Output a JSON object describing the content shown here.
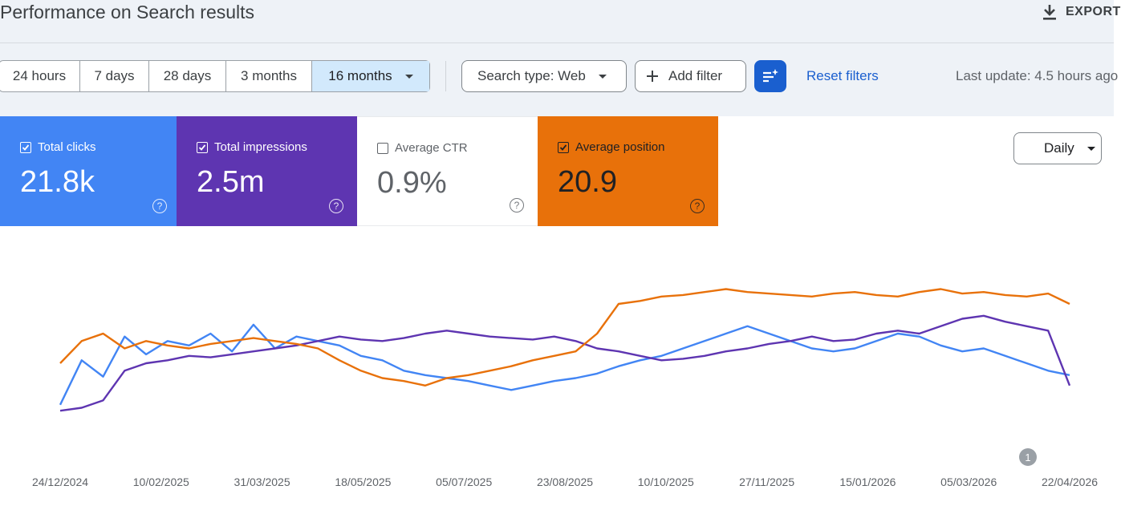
{
  "page": {
    "title": "Performance on Search results",
    "export_label": "EXPORT"
  },
  "date_range": {
    "options": [
      "24 hours",
      "7 days",
      "28 days",
      "3 months",
      "16 months"
    ],
    "selected": "16 months"
  },
  "filters": {
    "search_type": "Search type: Web",
    "add_filter": "Add filter",
    "reset": "Reset filters",
    "last_update": "Last update: 4.5 hours ago"
  },
  "metrics": [
    {
      "label": "Total clicks",
      "value": "21.8k",
      "checked": true,
      "color": "#4285f4"
    },
    {
      "label": "Total impressions",
      "value": "2.5m",
      "checked": true,
      "color": "#5e35b1"
    },
    {
      "label": "Average CTR",
      "value": "0.9%",
      "checked": false,
      "color": "#ffffff"
    },
    {
      "label": "Average position",
      "value": "20.9",
      "checked": true,
      "color": "#e8710a"
    }
  ],
  "granularity": "Daily",
  "annotation_label": "1",
  "icons": {
    "export": "download-icon",
    "add": "plus-icon",
    "filter": "filter-sparkle-icon",
    "help": "help-circle-icon",
    "check": "checkbox-icon"
  },
  "chart_data": {
    "type": "line",
    "x_tick_labels": [
      "24/12/2024",
      "10/02/2025",
      "31/03/2025",
      "18/05/2025",
      "05/07/2025",
      "23/08/2025",
      "10/10/2025",
      "27/11/2025",
      "15/01/2026",
      "05/03/2026",
      "22/04/2026"
    ],
    "x_range": [
      "24/12/2024",
      "29/04/2026"
    ],
    "y_axis_visible": false,
    "grid": false,
    "annotation": {
      "label": "1",
      "near_x": "20/04/2026"
    },
    "series": [
      {
        "name": "Total clicks",
        "color": "#4285f4",
        "values": [
          0.12,
          0.42,
          0.31,
          0.58,
          0.46,
          0.55,
          0.52,
          0.6,
          0.48,
          0.66,
          0.5,
          0.58,
          0.55,
          0.52,
          0.45,
          0.42,
          0.35,
          0.32,
          0.3,
          0.28,
          0.25,
          0.22,
          0.25,
          0.28,
          0.3,
          0.33,
          0.38,
          0.42,
          0.45,
          0.5,
          0.55,
          0.6,
          0.65,
          0.6,
          0.55,
          0.5,
          0.48,
          0.5,
          0.55,
          0.6,
          0.58,
          0.52,
          0.48,
          0.5,
          0.45,
          0.4,
          0.35,
          0.32
        ]
      },
      {
        "name": "Total impressions",
        "color": "#5e35b1",
        "values": [
          0.08,
          0.1,
          0.15,
          0.35,
          0.4,
          0.42,
          0.45,
          0.44,
          0.46,
          0.48,
          0.5,
          0.52,
          0.55,
          0.58,
          0.56,
          0.55,
          0.57,
          0.6,
          0.62,
          0.6,
          0.58,
          0.57,
          0.56,
          0.58,
          0.55,
          0.5,
          0.48,
          0.45,
          0.42,
          0.43,
          0.45,
          0.48,
          0.5,
          0.53,
          0.55,
          0.58,
          0.55,
          0.56,
          0.6,
          0.62,
          0.6,
          0.65,
          0.7,
          0.72,
          0.68,
          0.65,
          0.62,
          0.25
        ]
      },
      {
        "name": "Average position",
        "color": "#e8710a",
        "values": [
          0.4,
          0.55,
          0.6,
          0.5,
          0.55,
          0.52,
          0.5,
          0.53,
          0.55,
          0.57,
          0.55,
          0.53,
          0.5,
          0.42,
          0.35,
          0.3,
          0.28,
          0.25,
          0.3,
          0.32,
          0.35,
          0.38,
          0.42,
          0.45,
          0.48,
          0.6,
          0.8,
          0.82,
          0.85,
          0.86,
          0.88,
          0.9,
          0.88,
          0.87,
          0.86,
          0.85,
          0.87,
          0.88,
          0.86,
          0.85,
          0.88,
          0.9,
          0.87,
          0.88,
          0.86,
          0.85,
          0.87,
          0.8
        ]
      }
    ]
  }
}
